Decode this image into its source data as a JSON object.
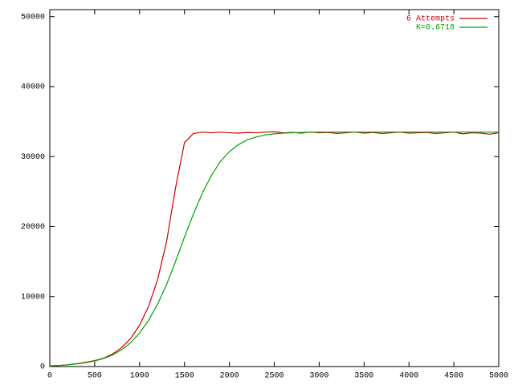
{
  "chart_data": {
    "type": "line",
    "x": [
      0,
      100,
      200,
      300,
      400,
      500,
      600,
      700,
      800,
      900,
      1000,
      1100,
      1200,
      1300,
      1400,
      1500,
      1600,
      1700,
      1800,
      1900,
      2000,
      2100,
      2200,
      2300,
      2400,
      2500,
      2600,
      2700,
      2800,
      2900,
      3000,
      3100,
      3200,
      3300,
      3400,
      3500,
      3600,
      3700,
      3800,
      3900,
      4000,
      4100,
      4200,
      4300,
      4400,
      4500,
      4600,
      4700,
      4800,
      4900,
      5000
    ],
    "series": [
      {
        "name": "6 Attempts",
        "color": "#cc0000",
        "values": [
          100,
          150,
          250,
          400,
          600,
          850,
          1200,
          1800,
          2700,
          4000,
          5900,
          8600,
          12400,
          17800,
          25500,
          32000,
          33300,
          33500,
          33400,
          33500,
          33400,
          33350,
          33450,
          33400,
          33500,
          33550,
          33400,
          33450,
          33350,
          33500,
          33400,
          33450,
          33300,
          33400,
          33500,
          33350,
          33450,
          33300,
          33400,
          33500,
          33350,
          33400,
          33450,
          33300,
          33400,
          33500,
          33250,
          33400,
          33350,
          33200,
          33400
        ]
      },
      {
        "name": "K=0.6718",
        "color": "#00a000",
        "values": [
          100,
          150,
          250,
          380,
          550,
          800,
          1150,
          1650,
          2400,
          3400,
          4800,
          6600,
          8900,
          11700,
          15000,
          18500,
          21800,
          24800,
          27300,
          29300,
          30700,
          31700,
          32400,
          32800,
          33100,
          33250,
          33350,
          33400,
          33450,
          33480,
          33500,
          33500,
          33500,
          33500,
          33500,
          33500,
          33500,
          33500,
          33500,
          33500,
          33500,
          33500,
          33500,
          33500,
          33500,
          33500,
          33500,
          33500,
          33500,
          33500,
          33500
        ]
      }
    ],
    "xlim": [
      0,
      5000
    ],
    "xticks": [
      0,
      500,
      1000,
      1500,
      2000,
      2500,
      3000,
      3500,
      4000,
      4500,
      5000
    ],
    "ylim": [
      0,
      51000
    ],
    "yticks": [
      0,
      10000,
      20000,
      30000,
      40000,
      50000
    ],
    "legend": "upper right"
  }
}
